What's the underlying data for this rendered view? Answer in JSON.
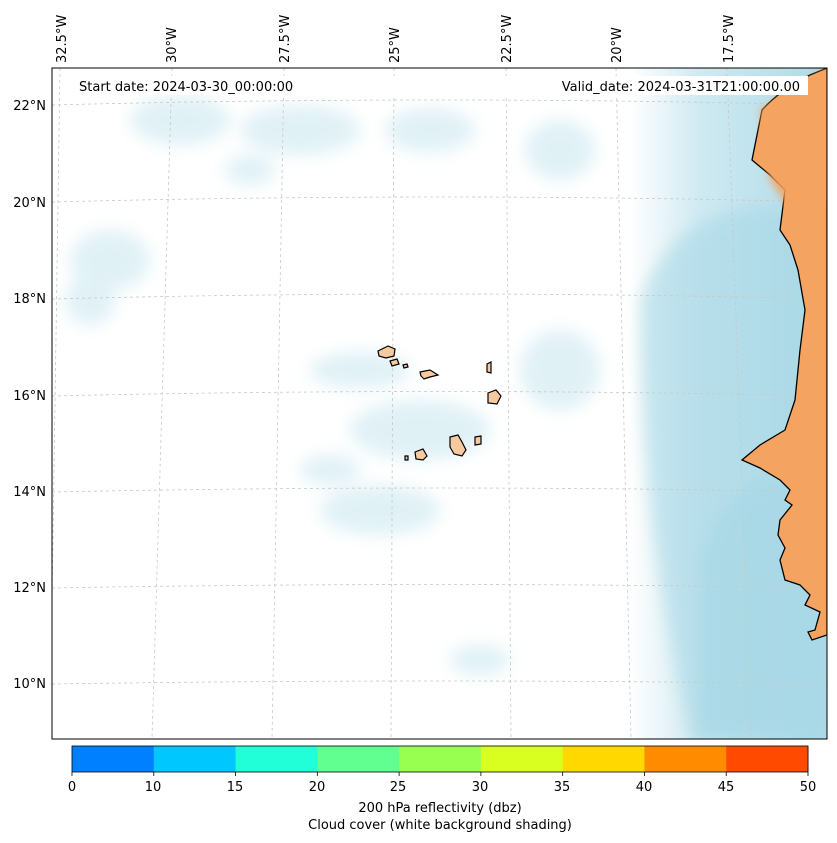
{
  "header": {
    "start_date": "Start date: 2024-03-30_00:00:00",
    "valid_date": "Valid_date: 2024-03-31T21:00:00.00"
  },
  "longitude_labels": [
    "32.5°W",
    "30°W",
    "27.5°W",
    "25°W",
    "22.5°W",
    "20°W",
    "17.5°W"
  ],
  "latitude_labels": [
    "22°N",
    "20°N",
    "18°N",
    "16°N",
    "14°N",
    "12°N",
    "10°N"
  ],
  "colorbar": {
    "ticks": [
      "0",
      "10",
      "15",
      "20",
      "25",
      "30",
      "35",
      "40",
      "45",
      "50"
    ],
    "colors": [
      "#0080ff",
      "#00c8ff",
      "#20ffd8",
      "#60ff90",
      "#98ff50",
      "#d8ff20",
      "#ffd800",
      "#ff8c00",
      "#ff4a00"
    ],
    "label_line1": "200 hPa reflectivity (dbz)",
    "label_line2": "Cloud cover (white background shading)"
  },
  "colors": {
    "land": "#f4a460",
    "island": "#f7c9a0",
    "cloud": "#a8d8e6",
    "grid": "#c8c8c8"
  }
}
